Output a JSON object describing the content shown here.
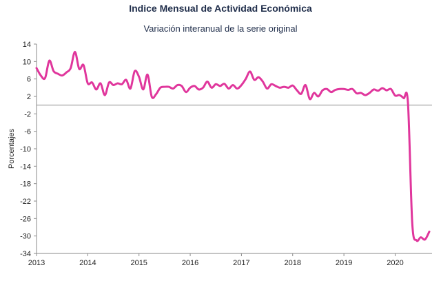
{
  "chart_data": {
    "type": "line",
    "title": "Indice Mensual de  Actividad Económica",
    "subtitle": "Variación interanual de la serie original",
    "ylabel": "Porcentajes",
    "xlabel": "",
    "ylim": [
      -34,
      14
    ],
    "yticks": [
      14,
      10,
      6,
      2,
      -2,
      -6,
      -10,
      -14,
      -18,
      -22,
      -26,
      -30,
      -34
    ],
    "xlim": [
      2013,
      2020.72
    ],
    "xticks": [
      2013,
      2014,
      2015,
      2016,
      2017,
      2018,
      2019,
      2020
    ],
    "grid": false,
    "legend": "none",
    "line_color": "#e0369c",
    "x": [
      2013.0,
      2013.0833,
      2013.1667,
      2013.25,
      2013.3333,
      2013.4167,
      2013.5,
      2013.5833,
      2013.6667,
      2013.75,
      2013.8333,
      2013.9167,
      2014.0,
      2014.0833,
      2014.1667,
      2014.25,
      2014.3333,
      2014.4167,
      2014.5,
      2014.5833,
      2014.6667,
      2014.75,
      2014.8333,
      2014.9167,
      2015.0,
      2015.0833,
      2015.1667,
      2015.25,
      2015.3333,
      2015.4167,
      2015.5,
      2015.5833,
      2015.6667,
      2015.75,
      2015.8333,
      2015.9167,
      2016.0,
      2016.0833,
      2016.1667,
      2016.25,
      2016.3333,
      2016.4167,
      2016.5,
      2016.5833,
      2016.6667,
      2016.75,
      2016.8333,
      2016.9167,
      2017.0,
      2017.0833,
      2017.1667,
      2017.25,
      2017.3333,
      2017.4167,
      2017.5,
      2017.5833,
      2017.6667,
      2017.75,
      2017.8333,
      2017.9167,
      2018.0,
      2018.0833,
      2018.1667,
      2018.25,
      2018.3333,
      2018.4167,
      2018.5,
      2018.5833,
      2018.6667,
      2018.75,
      2018.8333,
      2018.9167,
      2019.0,
      2019.0833,
      2019.1667,
      2019.25,
      2019.3333,
      2019.4167,
      2019.5,
      2019.5833,
      2019.6667,
      2019.75,
      2019.8333,
      2019.9167,
      2020.0,
      2020.0833,
      2020.1667,
      2020.25,
      2020.3333,
      2020.4167,
      2020.5,
      2020.5833,
      2020.6667
    ],
    "values": [
      8.5,
      6.8,
      6.2,
      10.2,
      7.8,
      7.2,
      6.8,
      7.5,
      8.5,
      12.2,
      8.3,
      9.2,
      5.0,
      5.2,
      3.6,
      5.0,
      2.3,
      5.2,
      4.6,
      5.0,
      4.8,
      5.8,
      3.8,
      7.8,
      6.5,
      3.6,
      7.0,
      1.9,
      2.5,
      4.0,
      4.2,
      4.2,
      3.8,
      4.6,
      4.4,
      3.0,
      4.0,
      4.4,
      3.6,
      4.0,
      5.4,
      4.0,
      4.8,
      4.4,
      4.9,
      3.8,
      4.6,
      3.8,
      4.6,
      6.0,
      7.7,
      5.8,
      6.4,
      5.4,
      3.8,
      4.8,
      4.4,
      4.0,
      4.2,
      4.0,
      4.5,
      3.4,
      2.6,
      4.6,
      1.4,
      2.8,
      2.0,
      3.4,
      3.7,
      3.0,
      3.5,
      3.7,
      3.7,
      3.5,
      3.7,
      2.7,
      2.8,
      2.3,
      2.8,
      3.6,
      3.3,
      3.9,
      3.4,
      3.7,
      2.2,
      2.3,
      1.6,
      0.5,
      -27.0,
      -31.0,
      -30.3,
      -30.8,
      -29.0
    ]
  }
}
